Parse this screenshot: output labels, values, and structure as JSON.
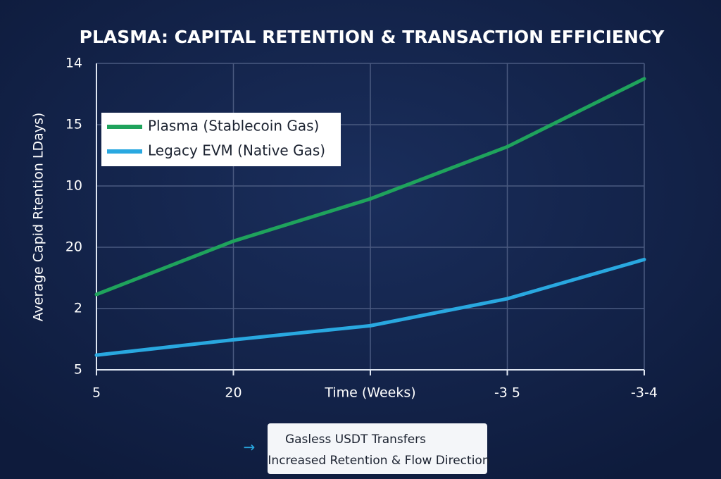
{
  "chart_data": {
    "type": "line",
    "title": "PLASMA: CAPITAL RETENTION & TRANSACTION EFFICIENCY",
    "x_label": "Time (Weeks)",
    "y_label": "Average Capid Rtention LDays)",
    "categories": [
      "5",
      "20",
      null,
      "-3 5",
      "-3-4"
    ],
    "series": [
      {
        "name": "Plasma (Stablecoin Gas)",
        "color": "#1fa35c",
        "values": [
          1.23,
          2.1,
          2.79,
          3.64,
          4.75
        ]
      },
      {
        "name": "Legacy EVM (Native Gas)",
        "color": "#29a8e0",
        "values": [
          0.24,
          0.49,
          0.72,
          1.16,
          1.8
        ]
      }
    ],
    "ylim": [
      0,
      5
    ],
    "yticks": [
      {
        "value": 0,
        "label": "5"
      },
      {
        "value": 1,
        "label": "2"
      },
      {
        "value": 2,
        "label": "20"
      },
      {
        "value": 3,
        "label": "10"
      },
      {
        "value": 4,
        "label": "15"
      },
      {
        "value": 5,
        "label": "14"
      }
    ],
    "grid": true,
    "legend": "upper left",
    "annotations": [
      "Gasless USDT Transfers",
      "Increased Retention & Flow Direction"
    ]
  }
}
